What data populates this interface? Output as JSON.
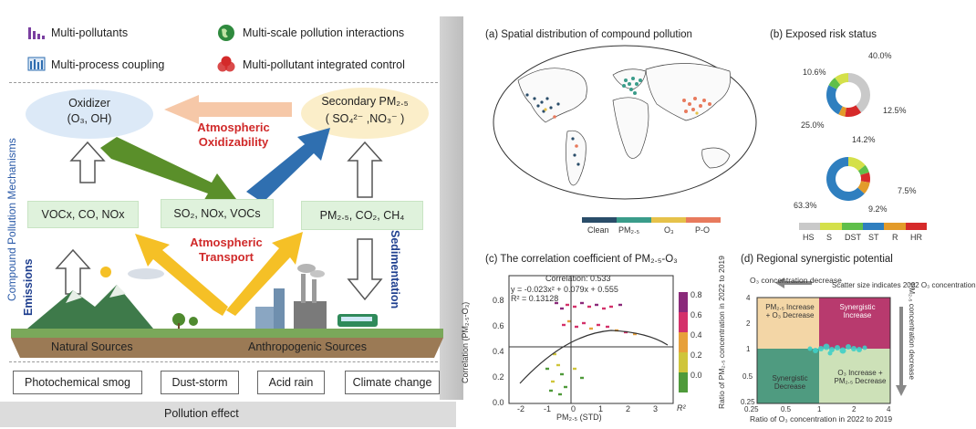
{
  "left": {
    "legend": {
      "multi_pollutants": "Multi-pollutants",
      "multi_process": "Multi-process coupling",
      "multi_scale": "Multi-scale pollution interactions",
      "integrated_control": "Multi-pollutant integrated control"
    },
    "side_title": "Compound Pollution Mechanisms",
    "oxidizer": {
      "title": "Oxidizer",
      "formula": "(O₃, OH)"
    },
    "secondary": {
      "title": "Secondary PM₂.₅",
      "formula": "( SO₄²⁻ ,NO₃⁻ )"
    },
    "atm_oxid": "Atmospheric Oxidizability",
    "atm_trans": "Atmospheric Transport",
    "boxes": {
      "left": "VOCx, CO, NOx",
      "mid": "SO₂, NOx, VOCs",
      "right": "PM₂.₅, CO₂, CH₄"
    },
    "emissions": "Emissions",
    "sedimentation": "Sedimentation",
    "natural": "Natural Sources",
    "anthropogenic": "Anthropogenic Sources",
    "effects": [
      "Photochemical smog",
      "Dust-storm",
      "Acid rain",
      "Climate change"
    ],
    "pollution_effect": "Pollution effect"
  },
  "panel_a": {
    "title": "(a) Spatial distribution of compound pollution",
    "legend": [
      "Clean",
      "PM₂.₅",
      "O₃",
      "P-O"
    ],
    "legend_colors": [
      "#2a4d69",
      "#3a9c8a",
      "#e6c24a",
      "#e87a5d"
    ]
  },
  "panel_b": {
    "title": "(b) Exposed risk status",
    "donut1_labels": [
      "40.0%",
      "10.6%",
      "25.0%",
      "12.5%"
    ],
    "donut2_labels": [
      "14.2%",
      "63.3%",
      "7.5%",
      "9.2%"
    ],
    "legend": [
      "HS",
      "S",
      "DST",
      "ST",
      "R",
      "HR"
    ],
    "legend_colors": [
      "#c9c9c9",
      "#d4e04a",
      "#5fbf4a",
      "#2f7fbf",
      "#e39b2a",
      "#d62a2a"
    ]
  },
  "panel_c": {
    "title": "(c) The correlation coefficient of PM₂.₅-O₃",
    "corr_label": "Correlation: 0.533",
    "eq": "y = -0.023x² + 0.079x + 0.555",
    "r2": "R² = 0.13128",
    "ylabel": "Correlation (PM₂.₅-O₃)",
    "xlabel": "PM₂.₅ (STD)",
    "cb_label": "R²",
    "xticks": [
      "-2",
      "-1",
      "0",
      "1",
      "2",
      "3"
    ],
    "yticks": [
      "0.0",
      "0.2",
      "0.4",
      "0.6",
      "0.8"
    ],
    "cbticks": [
      "0.8",
      "0.6",
      "0.4",
      "0.2",
      "0.0"
    ]
  },
  "panel_d": {
    "title": "(d) Regional synergistic potential",
    "top_note": "O₃ concentration decrease",
    "top_note2": "Scatter size indicates 2022 O₃ concentration",
    "q_tl": "PM₂.₅ Increase + O₃ Decrease",
    "q_tr": "Synergistic Increase",
    "q_bl": "Synergistic Decrease",
    "q_br": "O₃ Increase + PM₂.₅ Decrease",
    "ylabel": "Ratio of PM₂.₅ concentration in 2022 to 2019",
    "right_label": "PM₂.₅ concentration decrease",
    "xlabel": "Ratio of O₃ concentration in 2022 to 2019",
    "xticks": [
      "0.25",
      "0.5",
      "1",
      "2",
      "4"
    ],
    "yticks": [
      "4",
      "2",
      "1",
      "0.5",
      "0.25"
    ]
  }
}
